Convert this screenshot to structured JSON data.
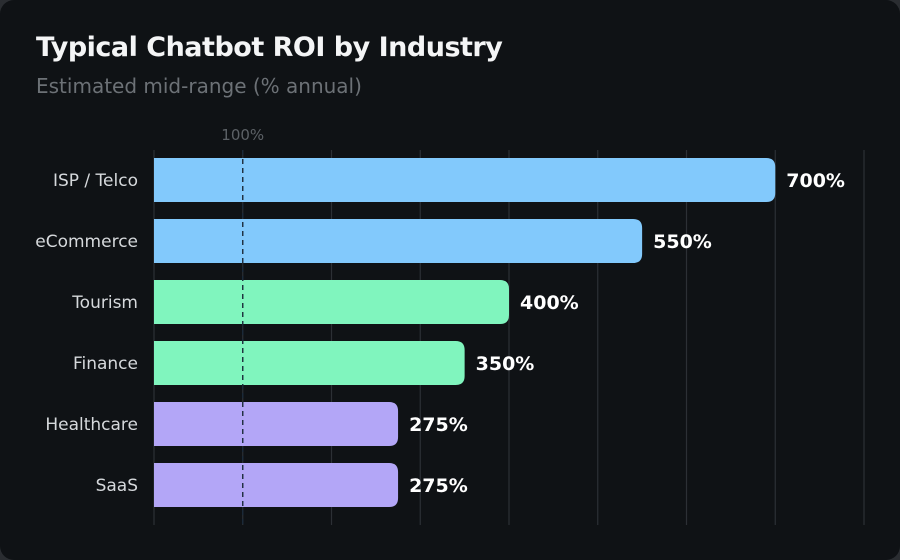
{
  "chart_data": {
    "type": "bar",
    "orientation": "horizontal",
    "title": "Typical Chatbot ROI by Industry",
    "subtitle": "Estimated mid-range (% annual)",
    "categories": [
      "ISP / Telco",
      "eCommerce",
      "Tourism",
      "Finance",
      "Healthcare",
      "SaaS"
    ],
    "values": [
      700,
      550,
      400,
      350,
      275,
      275
    ],
    "value_labels": [
      "700%",
      "550%",
      "400%",
      "350%",
      "275%",
      "275%"
    ],
    "bar_colors": [
      "#82c9fc",
      "#82c9fc",
      "#80f5be",
      "#80f5be",
      "#b3a6f7",
      "#b3a6f7"
    ],
    "xlim": [
      0,
      800
    ],
    "grid": true,
    "grid_step": 100,
    "reference_line": {
      "value": 100,
      "label": "100%",
      "style": "dashed"
    },
    "background": "#0f1215"
  }
}
